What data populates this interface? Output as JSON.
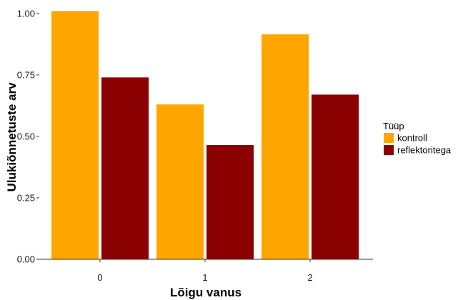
{
  "chart_data": {
    "type": "bar",
    "xlabel": "Lõigu vanus",
    "ylabel": "Ulukiõnnetuste arv",
    "categories": [
      "0",
      "1",
      "2"
    ],
    "ylim": [
      0,
      1.02
    ],
    "yticks": [
      0.0,
      0.25,
      0.5,
      0.75,
      1.0
    ],
    "ytick_labels": [
      "0.00",
      "0.25",
      "0.50",
      "0.75",
      "1.00"
    ],
    "series": [
      {
        "name": "kontroll",
        "color": "#FFA500",
        "values": [
          1.01,
          0.63,
          0.915
        ]
      },
      {
        "name": "reflektoritega",
        "color": "#8B0000",
        "values": [
          0.74,
          0.465,
          0.67
        ]
      }
    ],
    "legend": {
      "title": "Tüüp",
      "position": "right"
    },
    "grid": false
  }
}
